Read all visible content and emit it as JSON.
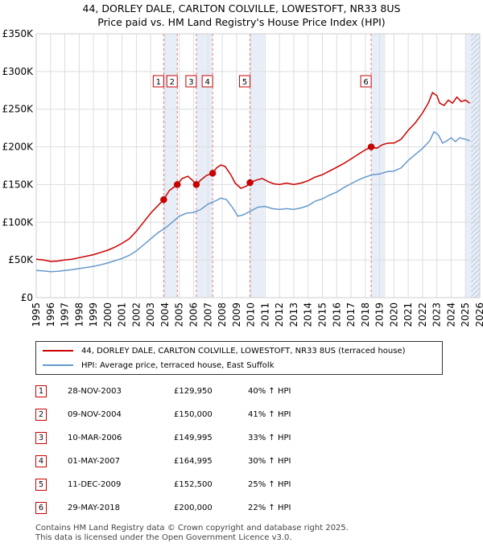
{
  "title": "44, DORLEY DALE, CARLTON COLVILLE, LOWESTOFT, NR33 8US",
  "subtitle": "Price paid vs. HM Land Registry's House Price Index (HPI)",
  "legend": {
    "property_label": "44, DORLEY DALE, CARLTON COLVILLE, LOWESTOFT, NR33 8US (terraced house)",
    "hpi_label": "HPI: Average price, terraced house, East Suffolk"
  },
  "colors": {
    "property": "#cc0000",
    "hpi": "#6699cc",
    "grid": "#dddddd",
    "marker_line": "#e07a7a",
    "shade": "#e8eef8"
  },
  "chart_data": {
    "type": "line",
    "title": "44, DORLEY DALE, CARLTON COLVILLE, LOWESTOFT, NR33 8US",
    "subtitle": "Price paid vs. HM Land Registry's House Price Index (HPI)",
    "xlim": [
      1995,
      2026
    ],
    "ylim": [
      0,
      350000
    ],
    "y_ticks": [
      {
        "value": 0,
        "label": "£0"
      },
      {
        "value": 50000,
        "label": "£50K"
      },
      {
        "value": 100000,
        "label": "£100K"
      },
      {
        "value": 150000,
        "label": "£150K"
      },
      {
        "value": 200000,
        "label": "£200K"
      },
      {
        "value": 250000,
        "label": "£250K"
      },
      {
        "value": 300000,
        "label": "£300K"
      },
      {
        "value": 350000,
        "label": "£350K"
      }
    ],
    "x_ticks": [
      "1995",
      "1996",
      "1997",
      "1998",
      "1999",
      "2000",
      "2001",
      "2002",
      "2003",
      "2004",
      "2005",
      "2006",
      "2007",
      "2008",
      "2009",
      "2010",
      "2011",
      "2012",
      "2013",
      "2014",
      "2015",
      "2016",
      "2017",
      "2018",
      "2019",
      "2020",
      "2021",
      "2022",
      "2023",
      "2024",
      "2025",
      "2026"
    ],
    "shaded_ranges": [
      [
        2003.91,
        2004.86
      ],
      [
        2006.19,
        2007.33
      ],
      [
        2009.94,
        2010.95
      ],
      [
        2018.41,
        2019.4
      ],
      [
        2025.0,
        2026.0
      ]
    ],
    "series": [
      {
        "name": "44, DORLEY DALE, CARLTON COLVILLE, LOWESTOFT, NR33 8US (terraced house)",
        "color": "#cc0000",
        "points": [
          [
            1995,
            51000
          ],
          [
            1995.5,
            50000
          ],
          [
            1996,
            48000
          ],
          [
            1996.5,
            48500
          ],
          [
            1997,
            50000
          ],
          [
            1997.5,
            51000
          ],
          [
            1998,
            53000
          ],
          [
            1998.5,
            55000
          ],
          [
            1999,
            57000
          ],
          [
            1999.5,
            60000
          ],
          [
            2000,
            63000
          ],
          [
            2000.5,
            67000
          ],
          [
            2001,
            72000
          ],
          [
            2001.5,
            78000
          ],
          [
            2002,
            88000
          ],
          [
            2002.5,
            100000
          ],
          [
            2003,
            112000
          ],
          [
            2003.5,
            122000
          ],
          [
            2003.91,
            129950
          ],
          [
            2004.3,
            142000
          ],
          [
            2004.86,
            150000
          ],
          [
            2005.2,
            158000
          ],
          [
            2005.6,
            161000
          ],
          [
            2005.9,
            156000
          ],
          [
            2006.19,
            149995
          ],
          [
            2006.5,
            156000
          ],
          [
            2006.9,
            162000
          ],
          [
            2007.33,
            164995
          ],
          [
            2007.6,
            172000
          ],
          [
            2007.9,
            176000
          ],
          [
            2008.2,
            174000
          ],
          [
            2008.6,
            163000
          ],
          [
            2008.9,
            152000
          ],
          [
            2009.3,
            145000
          ],
          [
            2009.7,
            148000
          ],
          [
            2009.94,
            152500
          ],
          [
            2010.4,
            156000
          ],
          [
            2010.8,
            158000
          ],
          [
            2011.2,
            154000
          ],
          [
            2011.6,
            151000
          ],
          [
            2012,
            150000
          ],
          [
            2012.5,
            152000
          ],
          [
            2013,
            150000
          ],
          [
            2013.5,
            152000
          ],
          [
            2014,
            155000
          ],
          [
            2014.5,
            160000
          ],
          [
            2015,
            163000
          ],
          [
            2015.5,
            168000
          ],
          [
            2016,
            173000
          ],
          [
            2016.5,
            178000
          ],
          [
            2017,
            184000
          ],
          [
            2017.5,
            190000
          ],
          [
            2018,
            196000
          ],
          [
            2018.41,
            200000
          ],
          [
            2018.8,
            198000
          ],
          [
            2019.2,
            203000
          ],
          [
            2019.6,
            205000
          ],
          [
            2020,
            205000
          ],
          [
            2020.5,
            210000
          ],
          [
            2021,
            222000
          ],
          [
            2021.5,
            232000
          ],
          [
            2022,
            245000
          ],
          [
            2022.4,
            258000
          ],
          [
            2022.7,
            272000
          ],
          [
            2023,
            268000
          ],
          [
            2023.2,
            258000
          ],
          [
            2023.5,
            255000
          ],
          [
            2023.8,
            262000
          ],
          [
            2024.1,
            258000
          ],
          [
            2024.4,
            266000
          ],
          [
            2024.7,
            260000
          ],
          [
            2025,
            262000
          ],
          [
            2025.3,
            258000
          ]
        ]
      },
      {
        "name": "HPI: Average price, terraced house, East Suffolk",
        "color": "#6699cc",
        "points": [
          [
            1995,
            36000
          ],
          [
            1995.5,
            35500
          ],
          [
            1996,
            34500
          ],
          [
            1996.5,
            35000
          ],
          [
            1997,
            36000
          ],
          [
            1997.5,
            37000
          ],
          [
            1998,
            38500
          ],
          [
            1998.5,
            40000
          ],
          [
            1999,
            41500
          ],
          [
            1999.5,
            43500
          ],
          [
            2000,
            46000
          ],
          [
            2000.5,
            49000
          ],
          [
            2001,
            52000
          ],
          [
            2001.5,
            56000
          ],
          [
            2002,
            62000
          ],
          [
            2002.5,
            70000
          ],
          [
            2003,
            78000
          ],
          [
            2003.5,
            86000
          ],
          [
            2004,
            92000
          ],
          [
            2004.5,
            100000
          ],
          [
            2005,
            108000
          ],
          [
            2005.5,
            112000
          ],
          [
            2006,
            113000
          ],
          [
            2006.5,
            117000
          ],
          [
            2007,
            124000
          ],
          [
            2007.5,
            128000
          ],
          [
            2007.9,
            132000
          ],
          [
            2008.3,
            130000
          ],
          [
            2008.7,
            120000
          ],
          [
            2009.1,
            108000
          ],
          [
            2009.5,
            110000
          ],
          [
            2010,
            115000
          ],
          [
            2010.5,
            120000
          ],
          [
            2011,
            121000
          ],
          [
            2011.5,
            118000
          ],
          [
            2012,
            117000
          ],
          [
            2012.5,
            118000
          ],
          [
            2013,
            117000
          ],
          [
            2013.5,
            119000
          ],
          [
            2014,
            122000
          ],
          [
            2014.5,
            128000
          ],
          [
            2015,
            131000
          ],
          [
            2015.5,
            136000
          ],
          [
            2016,
            140000
          ],
          [
            2016.5,
            146000
          ],
          [
            2017,
            151000
          ],
          [
            2017.5,
            156000
          ],
          [
            2018,
            160000
          ],
          [
            2018.5,
            163000
          ],
          [
            2019,
            164000
          ],
          [
            2019.5,
            167000
          ],
          [
            2020,
            168000
          ],
          [
            2020.5,
            172000
          ],
          [
            2021,
            182000
          ],
          [
            2021.5,
            190000
          ],
          [
            2022,
            198000
          ],
          [
            2022.5,
            208000
          ],
          [
            2022.8,
            220000
          ],
          [
            2023.1,
            216000
          ],
          [
            2023.4,
            205000
          ],
          [
            2023.7,
            208000
          ],
          [
            2024,
            212000
          ],
          [
            2024.3,
            207000
          ],
          [
            2024.6,
            212000
          ],
          [
            2025,
            210000
          ],
          [
            2025.3,
            208000
          ]
        ]
      }
    ],
    "sales": [
      {
        "num": "1",
        "x": 2003.91,
        "price": 129950
      },
      {
        "num": "2",
        "x": 2004.86,
        "price": 150000
      },
      {
        "num": "3",
        "x": 2006.19,
        "price": 149995
      },
      {
        "num": "4",
        "x": 2007.33,
        "price": 164995
      },
      {
        "num": "5",
        "x": 2009.94,
        "price": 152500
      },
      {
        "num": "6",
        "x": 2018.41,
        "price": 200000
      }
    ]
  },
  "transactions": [
    {
      "num": "1",
      "date": "28-NOV-2003",
      "price": "£129,950",
      "hpi": "40% ↑ HPI"
    },
    {
      "num": "2",
      "date": "09-NOV-2004",
      "price": "£150,000",
      "hpi": "41% ↑ HPI"
    },
    {
      "num": "3",
      "date": "10-MAR-2006",
      "price": "£149,995",
      "hpi": "33% ↑ HPI"
    },
    {
      "num": "4",
      "date": "01-MAY-2007",
      "price": "£164,995",
      "hpi": "30% ↑ HPI"
    },
    {
      "num": "5",
      "date": "11-DEC-2009",
      "price": "£152,500",
      "hpi": "25% ↑ HPI"
    },
    {
      "num": "6",
      "date": "29-MAY-2018",
      "price": "£200,000",
      "hpi": "22% ↑ HPI"
    }
  ],
  "footer": {
    "line1": "Contains HM Land Registry data © Crown copyright and database right 2025.",
    "line2": "This data is licensed under the Open Government Licence v3.0."
  }
}
